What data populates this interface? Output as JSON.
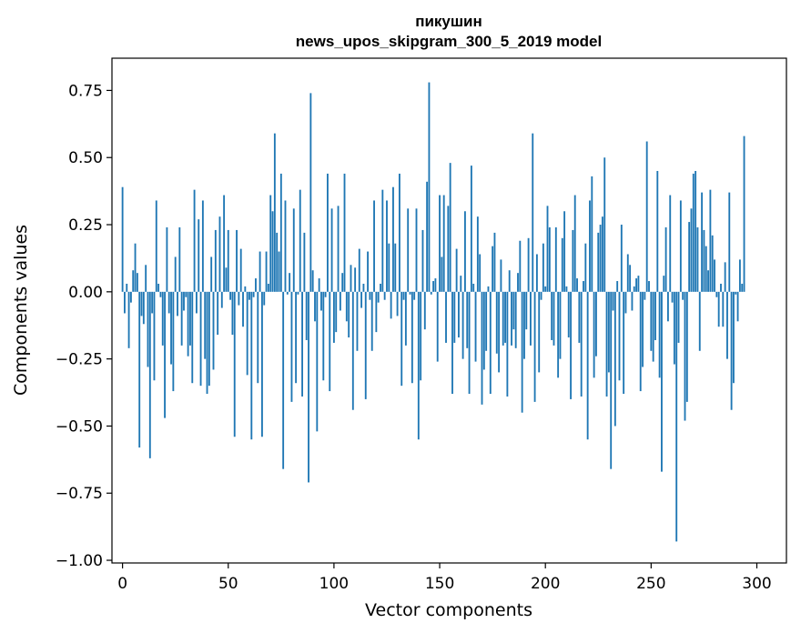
{
  "chart_data": {
    "type": "bar",
    "title": "пикушин",
    "subtitle": "news_upos_skipgram_300_5_2019 model",
    "xlabel": "Vector components",
    "ylabel": "Components values",
    "xlim": [
      -5,
      314
    ],
    "ylim": [
      -1.01,
      0.87
    ],
    "xticks": [
      0,
      50,
      100,
      150,
      200,
      250,
      300
    ],
    "yticks": [
      0.75,
      0.5,
      0.25,
      0.0,
      -0.25,
      -0.5,
      -0.75,
      -1.0
    ],
    "ytick_labels": [
      "0.75",
      "0.50",
      "0.25",
      "0.00",
      "−0.25",
      "−0.50",
      "−0.75",
      "−1.00"
    ],
    "grid": false,
    "bar_color": "#1f77b4",
    "x": "0..299 (component index)",
    "values": [
      0.39,
      -0.08,
      0.03,
      -0.21,
      -0.04,
      0.08,
      0.18,
      0.07,
      -0.58,
      -0.09,
      -0.12,
      0.1,
      -0.28,
      -0.62,
      -0.08,
      -0.33,
      0.34,
      0.03,
      -0.02,
      -0.2,
      -0.47,
      0.24,
      -0.08,
      -0.27,
      -0.37,
      0.13,
      -0.09,
      0.24,
      -0.2,
      -0.07,
      -0.02,
      -0.24,
      -0.2,
      -0.34,
      0.38,
      -0.08,
      0.27,
      -0.35,
      0.34,
      -0.25,
      -0.38,
      -0.35,
      0.13,
      -0.29,
      0.23,
      -0.16,
      0.28,
      -0.06,
      0.36,
      0.09,
      0.23,
      -0.03,
      -0.16,
      -0.54,
      0.23,
      -0.05,
      0.16,
      -0.13,
      0.02,
      -0.31,
      -0.03,
      -0.55,
      -0.02,
      0.05,
      -0.34,
      0.15,
      -0.54,
      -0.05,
      0.15,
      0.03,
      0.36,
      0.3,
      0.59,
      0.22,
      0.15,
      0.44,
      -0.66,
      0.34,
      -0.01,
      0.07,
      -0.41,
      0.31,
      -0.34,
      -0.01,
      0.38,
      -0.39,
      0.22,
      -0.18,
      -0.71,
      0.74,
      0.08,
      -0.11,
      -0.52,
      0.05,
      -0.07,
      -0.33,
      -0.02,
      0.44,
      -0.37,
      0.31,
      -0.19,
      -0.15,
      0.32,
      -0.07,
      0.07,
      0.44,
      -0.11,
      -0.17,
      0.1,
      -0.44,
      0.09,
      -0.22,
      0.16,
      -0.06,
      0.03,
      -0.4,
      0.15,
      -0.03,
      -0.22,
      0.34,
      -0.15,
      -0.04,
      0.03,
      0.38,
      -0.03,
      0.34,
      0.18,
      -0.1,
      0.39,
      0.18,
      -0.09,
      0.44,
      -0.35,
      -0.03,
      -0.2,
      0.31,
      -0.01,
      -0.34,
      -0.03,
      0.31,
      -0.55,
      -0.33,
      0.23,
      -0.14,
      0.41,
      0.78,
      -0.01,
      0.04,
      0.05,
      -0.26,
      0.36,
      0.13,
      0.36,
      -0.19,
      0.32,
      0.48,
      -0.38,
      -0.19,
      0.16,
      -0.17,
      0.06,
      -0.25,
      0.3,
      -0.21,
      -0.38,
      0.47,
      0.03,
      -0.26,
      0.28,
      0.14,
      -0.42,
      -0.29,
      -0.22,
      0.02,
      -0.38,
      0.17,
      0.22,
      -0.23,
      -0.3,
      0.12,
      -0.2,
      -0.19,
      -0.39,
      0.08,
      -0.2,
      -0.14,
      -0.21,
      0.07,
      0.19,
      -0.45,
      -0.25,
      -0.14,
      0.2,
      -0.2,
      0.59,
      -0.41,
      0.14,
      -0.3,
      -0.03,
      0.18,
      0.02,
      0.32,
      0.24,
      -0.18,
      -0.2,
      0.24,
      -0.32,
      -0.25,
      0.2,
      0.3,
      0.02,
      -0.17,
      -0.4,
      0.23,
      0.36,
      0.05,
      -0.19,
      -0.39,
      0.04,
      0.18,
      -0.55,
      0.34,
      0.43,
      -0.32,
      -0.24,
      0.22,
      0.25,
      0.28,
      0.5,
      -0.39,
      -0.3,
      -0.66,
      -0.07,
      -0.5,
      0.04,
      -0.33,
      0.25,
      -0.38,
      -0.08,
      0.14,
      0.1,
      -0.07,
      0.02,
      0.05,
      0.06,
      -0.37,
      -0.28,
      -0.03,
      0.56,
      0.04,
      -0.22,
      -0.26,
      -0.18,
      0.45,
      -0.32,
      -0.67,
      0.06,
      0.24,
      -0.11,
      0.36,
      -0.04,
      -0.27,
      -0.93,
      -0.19,
      0.34,
      -0.03,
      -0.48,
      -0.41,
      0.26,
      0.31,
      0.44,
      0.45,
      0.24,
      -0.22,
      0.37,
      0.23,
      0.17,
      0.08,
      0.38,
      0.21,
      0.12,
      -0.02,
      -0.13,
      0.03,
      -0.13,
      0.11,
      -0.25,
      0.37,
      -0.44,
      -0.34,
      -0.01,
      -0.11,
      0.12,
      0.03,
      0.58
    ]
  }
}
